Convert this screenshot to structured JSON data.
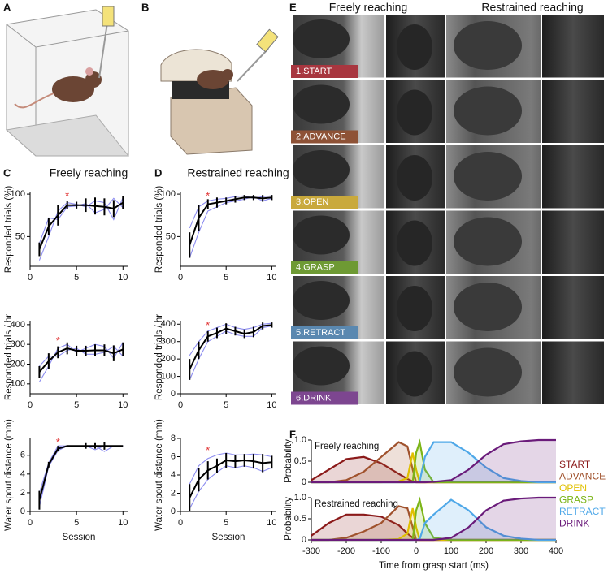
{
  "panel_labels": [
    "A",
    "B",
    "C",
    "D",
    "E",
    "F"
  ],
  "panel_e": {
    "headers": [
      "Freely reaching",
      "Restrained reaching"
    ],
    "phases": [
      {
        "label": "1.START",
        "color": "#a8363f"
      },
      {
        "label": "2.ADVANCE",
        "color": "#8e5236"
      },
      {
        "label": "3.OPEN",
        "color": "#c9a93c"
      },
      {
        "label": "4.GRASP",
        "color": "#6e9a34"
      },
      {
        "label": "5.RETRACT",
        "color": "#5a88b0"
      },
      {
        "label": "6.DRINK",
        "color": "#7d4690"
      }
    ]
  },
  "chart_data": [
    {
      "type": "line",
      "title": "Freely reaching",
      "ylabel": "Responded trials (%)",
      "x": [
        1,
        2,
        3,
        4,
        5,
        6,
        7,
        8,
        9,
        10
      ],
      "xlim": [
        0,
        10.5
      ],
      "xticks": [
        0,
        5,
        10
      ],
      "ylim": [
        15,
        102
      ],
      "yticks": [
        50,
        100
      ],
      "series": [
        {
          "color": "#000000",
          "values": [
            35,
            62,
            75,
            87,
            87,
            87,
            86,
            85,
            83,
            90
          ],
          "errors": [
            8,
            10,
            12,
            5,
            4,
            8,
            10,
            10,
            10,
            8
          ]
        }
      ],
      "lines": [
        [
          22,
          50,
          80,
          90,
          88,
          85,
          92,
          90,
          70,
          96
        ],
        [
          42,
          72,
          70,
          85,
          86,
          89,
          78,
          82,
          95,
          84
        ]
      ],
      "line_color": "#8c8cf0",
      "annotation": {
        "text": "*",
        "x": 4,
        "y": 97,
        "color": "#e03030"
      }
    },
    {
      "type": "line",
      "ylabel": "Responded trials / hr",
      "x": [
        1,
        2,
        3,
        4,
        5,
        6,
        7,
        8,
        9,
        10
      ],
      "xlim": [
        0,
        10.5
      ],
      "xticks": [
        0,
        5,
        10
      ],
      "ylim": [
        50,
        420
      ],
      "yticks": [
        100,
        200,
        300,
        400
      ],
      "series": [
        {
          "color": "#000000",
          "values": [
            160,
            215,
            260,
            280,
            268,
            268,
            270,
            270,
            255,
            275
          ],
          "errors": [
            30,
            40,
            30,
            30,
            25,
            25,
            30,
            30,
            40,
            35
          ]
        }
      ],
      "lines": [
        [
          110,
          190,
          280,
          300,
          260,
          280,
          300,
          290,
          230,
          310
        ],
        [
          190,
          240,
          240,
          270,
          280,
          250,
          250,
          260,
          290,
          240
        ]
      ],
      "line_color": "#8c8cf0",
      "annotation": {
        "text": "*",
        "x": 3,
        "y": 315,
        "color": "#e03030"
      }
    },
    {
      "type": "line",
      "ylabel": "Water spout distance (mm)",
      "xlabel": "Session",
      "x": [
        1,
        2,
        3,
        4,
        5,
        6,
        7,
        8,
        9,
        10
      ],
      "xlim": [
        0,
        10.5
      ],
      "xticks": [
        0,
        5,
        10
      ],
      "ylim": [
        0,
        7.8
      ],
      "yticks": [
        0,
        2,
        4,
        6
      ],
      "series": [
        {
          "color": "#000000",
          "values": [
            1.2,
            5,
            6.7,
            7,
            7,
            7,
            7,
            7,
            7,
            7
          ],
          "errors": [
            1,
            0.3,
            0.3,
            0,
            0,
            0.3,
            0.3,
            0.4,
            0,
            0
          ]
        }
      ],
      "lines": [
        [
          0.5,
          4.8,
          6.5,
          7,
          7,
          7,
          6.6,
          7,
          7,
          7
        ],
        [
          2,
          5.2,
          7,
          7,
          7,
          7,
          7,
          6.4,
          7,
          7
        ]
      ],
      "line_color": "#8c8cf0",
      "annotation": {
        "text": "*",
        "x": 3,
        "y": 7.3,
        "color": "#e03030"
      }
    },
    {
      "type": "line",
      "title": "Restrained reaching",
      "ylabel": "Responded trials (%)",
      "x": [
        1,
        2,
        3,
        4,
        5,
        6,
        7,
        8,
        9,
        10
      ],
      "xlim": [
        0,
        10.5
      ],
      "xticks": [
        0,
        5,
        10
      ],
      "ylim": [
        15,
        102
      ],
      "yticks": [
        50,
        100
      ],
      "series": [
        {
          "color": "#000000",
          "values": [
            40,
            72,
            88,
            90,
            92,
            94,
            96,
            96,
            95,
            96
          ],
          "errors": [
            15,
            15,
            6,
            6,
            4,
            4,
            3,
            3,
            4,
            3
          ]
        }
      ],
      "lines": [
        [
          25,
          55,
          80,
          85,
          90,
          92,
          94,
          97,
          92,
          95
        ],
        [
          60,
          85,
          92,
          94,
          95,
          97,
          98,
          95,
          97,
          98
        ]
      ],
      "line_color": "#8c8cf0",
      "annotation": {
        "text": "*",
        "x": 3,
        "y": 97,
        "color": "#e03030"
      }
    },
    {
      "type": "line",
      "ylabel": "Responded trials / hr",
      "x": [
        1,
        2,
        3,
        4,
        5,
        6,
        7,
        8,
        9,
        10
      ],
      "xlim": [
        0,
        10.5
      ],
      "xticks": [
        0,
        5,
        10
      ],
      "ylim": [
        0,
        420
      ],
      "yticks": [
        0,
        100,
        200,
        300,
        400
      ],
      "series": [
        {
          "color": "#000000",
          "values": [
            140,
            250,
            330,
            350,
            375,
            360,
            345,
            355,
            390,
            395
          ],
          "errors": [
            60,
            50,
            30,
            30,
            30,
            25,
            25,
            30,
            20,
            15
          ]
        }
      ],
      "lines": [
        [
          80,
          200,
          300,
          330,
          360,
          340,
          330,
          330,
          380,
          390
        ],
        [
          220,
          300,
          360,
          380,
          400,
          380,
          370,
          380,
          400,
          405
        ]
      ],
      "line_color": "#8c8cf0",
      "annotation": {
        "text": "*",
        "x": 3,
        "y": 390,
        "color": "#e03030"
      }
    },
    {
      "type": "line",
      "ylabel": "Water spout distance (mm)",
      "xlabel": "Session",
      "x": [
        1,
        2,
        3,
        4,
        5,
        6,
        7,
        8,
        9,
        10
      ],
      "xlim": [
        0,
        10.5
      ],
      "xticks": [
        0,
        5,
        10
      ],
      "ylim": [
        0,
        8
      ],
      "yticks": [
        0,
        2,
        4,
        6,
        8
      ],
      "series": [
        {
          "color": "#000000",
          "values": [
            1.5,
            3.5,
            4.5,
            5,
            5.6,
            5.5,
            5.6,
            5.5,
            5.3,
            5.4
          ],
          "errors": [
            1.5,
            1.3,
            1,
            0.8,
            0.8,
            0.7,
            0.7,
            0.8,
            1,
            0.7
          ]
        }
      ],
      "lines": [
        [
          0.3,
          2.2,
          3.5,
          4.3,
          5,
          4.8,
          5,
          4.8,
          4.4,
          4.8
        ],
        [
          3,
          5,
          5.8,
          6.2,
          6.4,
          6.2,
          6.2,
          6.3,
          6.2,
          6
        ]
      ],
      "line_color": "#8c8cf0",
      "annotation": {
        "text": "*",
        "x": 3,
        "y": 6.6,
        "color": "#e03030"
      }
    },
    {
      "type": "area",
      "title": "Freely reaching",
      "ylabel": "Probability",
      "x": [
        -300,
        -250,
        -200,
        -150,
        -100,
        -50,
        -25,
        -10,
        0,
        10,
        25,
        50,
        100,
        150,
        200,
        250,
        300,
        350,
        400
      ],
      "xlim": [
        -300,
        400
      ],
      "ylim": [
        0,
        1
      ],
      "yticks": [
        0,
        0.5,
        {
          "value": 1,
          "label": "1.0"
        }
      ],
      "series": [
        {
          "name": "START",
          "color": "#8b1a1a",
          "values": [
            0.05,
            0.3,
            0.55,
            0.6,
            0.45,
            0.2,
            0.08,
            0.02,
            0,
            0,
            0,
            0,
            0,
            0,
            0,
            0,
            0,
            0,
            0
          ]
        },
        {
          "name": "ADVANCE",
          "color": "#a0522d",
          "values": [
            0,
            0,
            0.05,
            0.25,
            0.6,
            0.95,
            0.85,
            0.3,
            0,
            0,
            0,
            0,
            0,
            0,
            0,
            0,
            0,
            0,
            0
          ]
        },
        {
          "name": "OPEN",
          "color": "#e0c000",
          "values": [
            0,
            0,
            0,
            0,
            0,
            0.02,
            0.1,
            0.7,
            0.3,
            0,
            0,
            0,
            0,
            0,
            0,
            0,
            0,
            0,
            0
          ]
        },
        {
          "name": "GRASP",
          "color": "#7cb518",
          "values": [
            0,
            0,
            0,
            0,
            0,
            0,
            0,
            0,
            0.7,
            0.95,
            0.3,
            0,
            0,
            0,
            0,
            0,
            0,
            0,
            0
          ]
        },
        {
          "name": "RETRACT",
          "color": "#4fa8e8",
          "values": [
            0,
            0,
            0,
            0,
            0,
            0,
            0,
            0,
            0,
            0.02,
            0.6,
            0.95,
            0.95,
            0.7,
            0.35,
            0.1,
            0.03,
            0,
            0
          ]
        },
        {
          "name": "DRINK",
          "color": "#6a1b7a",
          "values": [
            0,
            0,
            0,
            0,
            0,
            0,
            0,
            0,
            0,
            0,
            0,
            0.01,
            0.05,
            0.3,
            0.65,
            0.9,
            0.97,
            1,
            1
          ]
        }
      ]
    },
    {
      "type": "area",
      "title": "Restrained reaching",
      "ylabel": "Probability",
      "xlabel": "Time from grasp start (ms)",
      "x": [
        -300,
        -250,
        -200,
        -150,
        -100,
        -50,
        -25,
        -10,
        0,
        10,
        25,
        50,
        100,
        150,
        200,
        250,
        300,
        350,
        400
      ],
      "xlim": [
        -300,
        400
      ],
      "xticks": [
        -300,
        -200,
        -100,
        0,
        100,
        200,
        300,
        400
      ],
      "ylim": [
        0,
        1
      ],
      "yticks": [
        0,
        0.5,
        {
          "value": 1,
          "label": "1.0"
        }
      ],
      "series": [
        {
          "color": "#8b1a1a",
          "values": [
            0.1,
            0.4,
            0.6,
            0.6,
            0.55,
            0.35,
            0.15,
            0.05,
            0,
            0,
            0,
            0,
            0,
            0,
            0,
            0,
            0,
            0,
            0
          ]
        },
        {
          "color": "#a0522d",
          "values": [
            0,
            0,
            0.05,
            0.2,
            0.4,
            0.8,
            0.75,
            0.3,
            0,
            0,
            0,
            0,
            0,
            0,
            0,
            0,
            0,
            0,
            0
          ]
        },
        {
          "color": "#e0c000",
          "values": [
            0,
            0,
            0,
            0,
            0,
            0.02,
            0.15,
            0.75,
            0.3,
            0,
            0,
            0,
            0,
            0,
            0,
            0,
            0,
            0,
            0
          ]
        },
        {
          "color": "#7cb518",
          "values": [
            0,
            0,
            0,
            0,
            0,
            0,
            0,
            0,
            0.7,
            0.95,
            0.4,
            0.05,
            0,
            0,
            0,
            0,
            0,
            0,
            0
          ]
        },
        {
          "color": "#4fa8e8",
          "values": [
            0,
            0,
            0,
            0,
            0,
            0,
            0,
            0,
            0,
            0.02,
            0.4,
            0.6,
            0.95,
            0.7,
            0.3,
            0.1,
            0.03,
            0,
            0
          ]
        },
        {
          "color": "#6a1b7a",
          "values": [
            0,
            0,
            0,
            0,
            0,
            0,
            0,
            0,
            0,
            0,
            0,
            0,
            0.05,
            0.3,
            0.7,
            0.93,
            0.98,
            1,
            1
          ]
        }
      ]
    }
  ]
}
